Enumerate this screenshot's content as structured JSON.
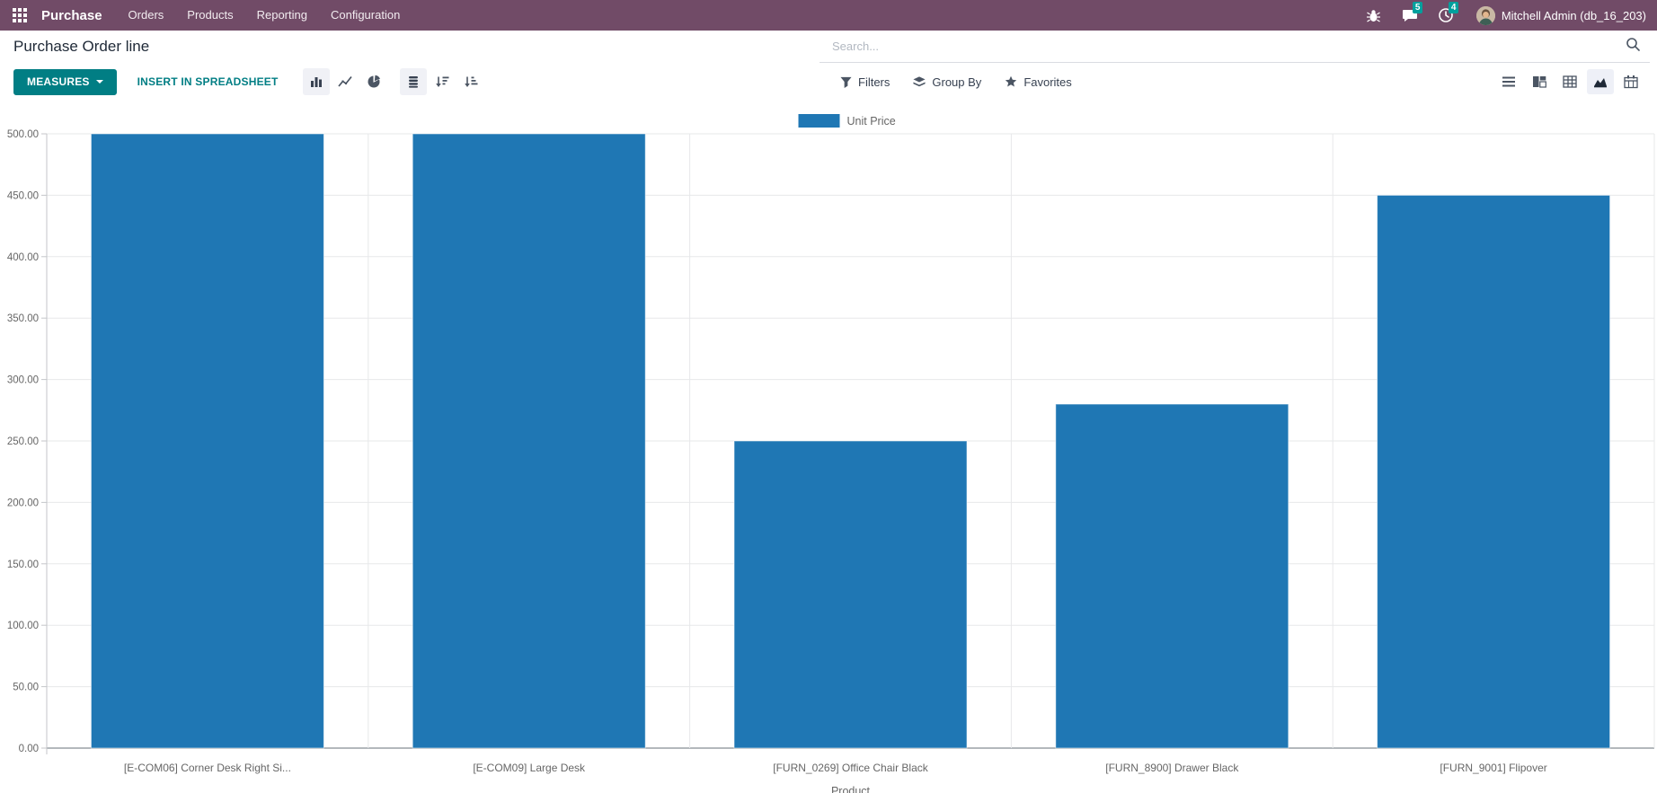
{
  "navbar": {
    "brand": "Purchase",
    "menus": [
      {
        "label": "Orders"
      },
      {
        "label": "Products"
      },
      {
        "label": "Reporting"
      },
      {
        "label": "Configuration"
      }
    ],
    "message_badge": "5",
    "activity_badge": "4",
    "user_name": "Mitchell Admin (db_16_203)"
  },
  "control_panel": {
    "title": "Purchase Order line",
    "search_placeholder": "Search...",
    "measures_label": "MEASURES",
    "insert_spreadsheet_label": "INSERT IN SPREADSHEET",
    "filters_label": "Filters",
    "group_by_label": "Group By",
    "favorites_label": "Favorites"
  },
  "colors": {
    "navbar_bg": "#714B67",
    "primary_teal": "#017E84",
    "badge_teal": "#00A09D",
    "bar_blue": "#1f77b4"
  },
  "chart_data": {
    "type": "bar",
    "title": "",
    "legend_position": "top",
    "grid": true,
    "categories": [
      "[E-COM06] Corner Desk Right Si...",
      "[E-COM09] Large Desk",
      "[FURN_0269] Office Chair Black",
      "[FURN_8900] Drawer Black",
      "[FURN_9001] Flipover"
    ],
    "series": [
      {
        "name": "Unit Price",
        "color": "#1f77b4",
        "values": [
          500,
          500,
          250,
          280,
          450
        ]
      }
    ],
    "xlabel": "Product",
    "ylabel": "",
    "ylim": [
      0,
      500
    ],
    "ytick_step": 50,
    "ytick_decimals": 2
  }
}
